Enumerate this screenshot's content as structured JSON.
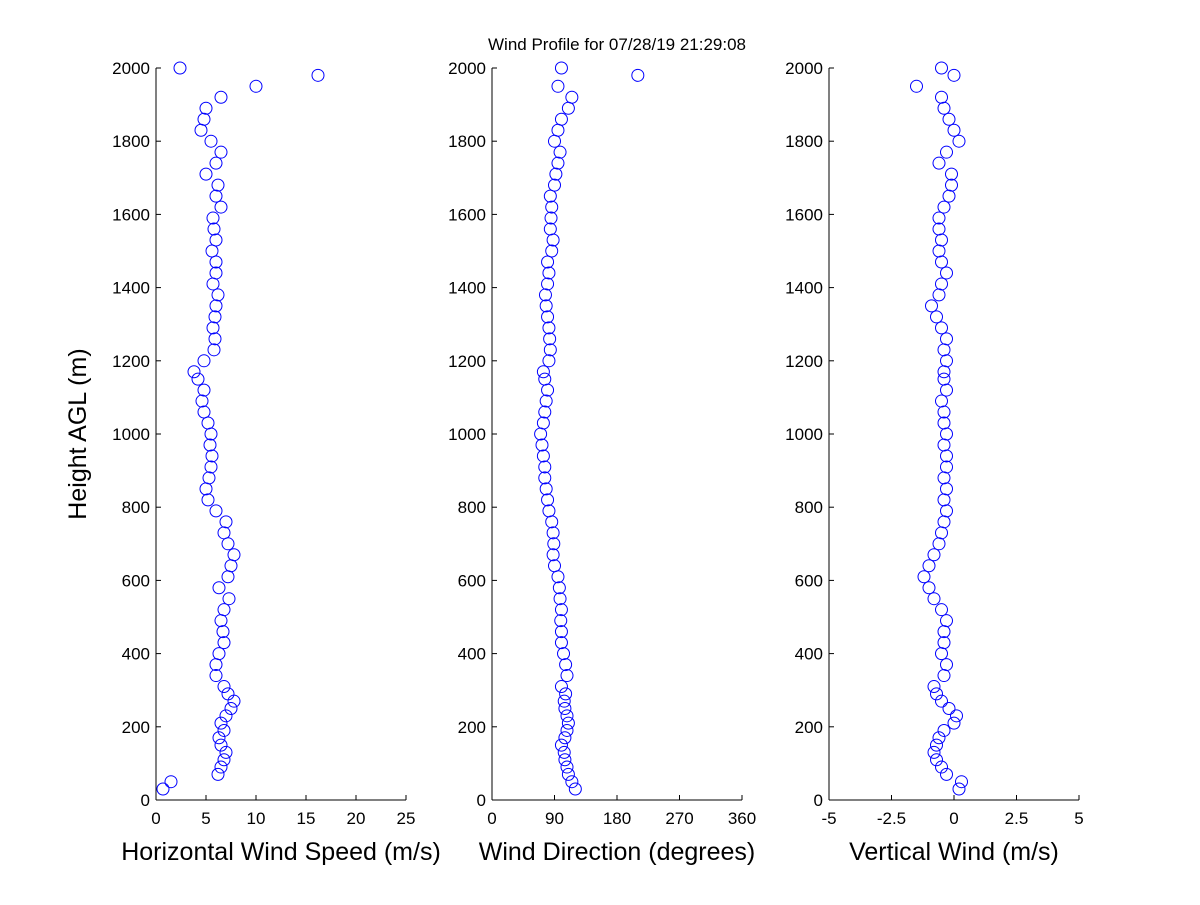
{
  "chart_data": [
    {
      "type": "scatter",
      "ylabel": "Height AGL (m)",
      "xlabel": "Horizontal Wind Speed (m/s)",
      "color": "#0000ff",
      "xlim": [
        0,
        25
      ],
      "xticks": [
        0,
        5,
        10,
        15,
        20,
        25
      ],
      "ylim": [
        0,
        2000
      ],
      "yticks": [
        0,
        200,
        400,
        600,
        800,
        1000,
        1200,
        1400,
        1600,
        1800,
        2000
      ],
      "x": [
        0.7,
        1.5,
        6.2,
        6.5,
        6.8,
        7.0,
        6.5,
        6.3,
        6.8,
        6.5,
        7.0,
        7.5,
        7.8,
        7.2,
        6.8,
        6.0,
        6.0,
        6.3,
        6.8,
        6.7,
        6.5,
        6.8,
        7.3,
        6.3,
        7.2,
        7.5,
        7.8,
        7.2,
        6.8,
        7.0,
        6.0,
        5.2,
        5.0,
        5.3,
        5.5,
        5.6,
        5.4,
        5.5,
        5.2,
        4.8,
        4.6,
        4.8,
        4.2,
        3.8,
        4.8,
        5.8,
        5.9,
        5.7,
        5.9,
        6.0,
        6.2,
        5.7,
        6.0,
        6.0,
        5.6,
        6.0,
        5.8,
        5.7,
        6.5,
        6.0,
        6.2,
        5.0,
        6.0,
        6.5,
        5.5,
        4.5,
        4.8,
        5.0,
        6.5,
        10.0,
        16.2,
        2.4
      ],
      "y": [
        30,
        50,
        70,
        90,
        110,
        130,
        150,
        170,
        190,
        210,
        230,
        250,
        270,
        290,
        310,
        340,
        370,
        400,
        430,
        460,
        490,
        520,
        550,
        580,
        610,
        640,
        670,
        700,
        730,
        760,
        790,
        820,
        850,
        880,
        910,
        940,
        970,
        1000,
        1030,
        1060,
        1090,
        1120,
        1150,
        1170,
        1200,
        1230,
        1260,
        1290,
        1320,
        1350,
        1380,
        1410,
        1440,
        1470,
        1500,
        1530,
        1560,
        1590,
        1620,
        1650,
        1680,
        1710,
        1740,
        1770,
        1800,
        1830,
        1860,
        1890,
        1920,
        1950,
        1980,
        2000
      ]
    },
    {
      "type": "scatter",
      "title": "Wind Profile for  07/28/19 21:29:08",
      "xlabel": "Wind Direction (degrees)",
      "color": "#0000ff",
      "xlim": [
        0,
        360
      ],
      "xticks": [
        0,
        90,
        180,
        270,
        360
      ],
      "ylim": [
        0,
        2000
      ],
      "yticks": [
        0,
        200,
        400,
        600,
        800,
        1000,
        1200,
        1400,
        1600,
        1800,
        2000
      ],
      "x": [
        120,
        115,
        110,
        108,
        105,
        104,
        100,
        105,
        108,
        110,
        108,
        105,
        104,
        106,
        100,
        108,
        106,
        103,
        100,
        100,
        99,
        100,
        98,
        97,
        95,
        90,
        88,
        89,
        88,
        86,
        82,
        80,
        78,
        76,
        76,
        74,
        72,
        70,
        74,
        76,
        78,
        80,
        76,
        74,
        82,
        84,
        83,
        82,
        80,
        78,
        77,
        80,
        82,
        80,
        86,
        88,
        84,
        85,
        86,
        84,
        90,
        92,
        95,
        98,
        90,
        95,
        100,
        110,
        115,
        95,
        210,
        100
      ],
      "y": [
        30,
        50,
        70,
        90,
        110,
        130,
        150,
        170,
        190,
        210,
        230,
        250,
        270,
        290,
        310,
        340,
        370,
        400,
        430,
        460,
        490,
        520,
        550,
        580,
        610,
        640,
        670,
        700,
        730,
        760,
        790,
        820,
        850,
        880,
        910,
        940,
        970,
        1000,
        1030,
        1060,
        1090,
        1120,
        1150,
        1170,
        1200,
        1230,
        1260,
        1290,
        1320,
        1350,
        1380,
        1410,
        1440,
        1470,
        1500,
        1530,
        1560,
        1590,
        1620,
        1650,
        1680,
        1710,
        1740,
        1770,
        1800,
        1830,
        1860,
        1890,
        1920,
        1950,
        1980,
        2000
      ]
    },
    {
      "type": "scatter",
      "xlabel": "Vertical Wind (m/s)",
      "color": "#0000ff",
      "xlim": [
        -5,
        5
      ],
      "xticks": [
        -5,
        -2.5,
        0,
        2.5,
        5
      ],
      "ylim": [
        0,
        2000
      ],
      "yticks": [
        0,
        200,
        400,
        600,
        800,
        1000,
        1200,
        1400,
        1600,
        1800,
        2000
      ],
      "x": [
        0.2,
        0.3,
        -0.3,
        -0.5,
        -0.7,
        -0.8,
        -0.7,
        -0.6,
        -0.4,
        0,
        0.1,
        -0.2,
        -0.5,
        -0.7,
        -0.8,
        -0.4,
        -0.3,
        -0.5,
        -0.4,
        -0.4,
        -0.3,
        -0.5,
        -0.8,
        -1.0,
        -1.2,
        -1.0,
        -0.8,
        -0.6,
        -0.5,
        -0.4,
        -0.3,
        -0.4,
        -0.3,
        -0.4,
        -0.3,
        -0.3,
        -0.4,
        -0.3,
        -0.4,
        -0.4,
        -0.5,
        -0.3,
        -0.4,
        -0.4,
        -0.3,
        -0.4,
        -0.3,
        -0.5,
        -0.7,
        -0.9,
        -0.6,
        -0.5,
        -0.3,
        -0.5,
        -0.6,
        -0.5,
        -0.6,
        -0.6,
        -0.4,
        -0.2,
        -0.1,
        -0.1,
        -0.6,
        -0.3,
        0.2,
        0,
        -0.2,
        -0.4,
        -0.5,
        -1.5,
        0,
        -0.5
      ],
      "y": [
        30,
        50,
        70,
        90,
        110,
        130,
        150,
        170,
        190,
        210,
        230,
        250,
        270,
        290,
        310,
        340,
        370,
        400,
        430,
        460,
        490,
        520,
        550,
        580,
        610,
        640,
        670,
        700,
        730,
        760,
        790,
        820,
        850,
        880,
        910,
        940,
        970,
        1000,
        1030,
        1060,
        1090,
        1120,
        1150,
        1170,
        1200,
        1230,
        1260,
        1290,
        1320,
        1350,
        1380,
        1410,
        1440,
        1470,
        1500,
        1530,
        1560,
        1590,
        1620,
        1650,
        1680,
        1710,
        1740,
        1770,
        1800,
        1830,
        1860,
        1890,
        1920,
        1950,
        1980,
        2000
      ]
    }
  ]
}
